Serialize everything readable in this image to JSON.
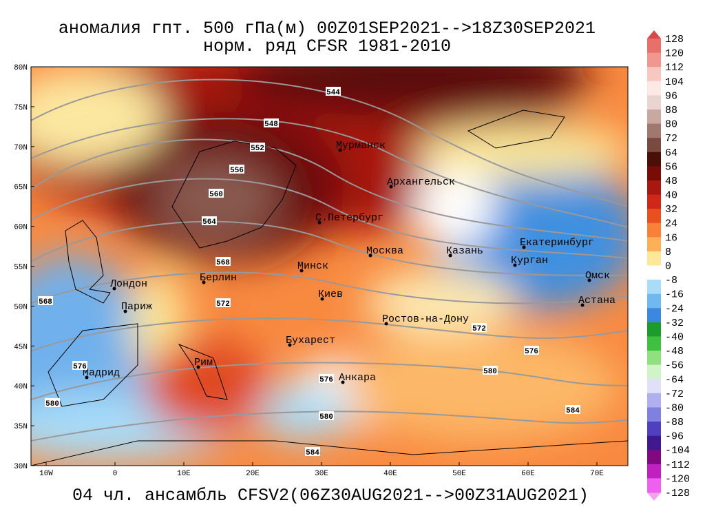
{
  "title": [
    "аномалия гпт. 500 гПа(м) 00Z01SEP2021-->18Z30SEP2021",
    "норм. ряд CFSR 1981-2010"
  ],
  "footer": "04 чл. ансамбль CFSV2(06Z30AUG2021-->00Z31AUG2021)",
  "lat_labels": [
    "80N",
    "75N",
    "70N",
    "65N",
    "60N",
    "55N",
    "50N",
    "45N",
    "40N",
    "35N",
    "30N"
  ],
  "lon_labels": [
    "10W",
    "0",
    "10E",
    "20E",
    "30E",
    "40E",
    "50E",
    "60E",
    "70E"
  ],
  "cities": [
    "Мурманск",
    "Архангельск",
    "С.Петербург",
    "Москва",
    "Казань",
    "Екатеринбург",
    "Курган",
    "Омск",
    "Астана",
    "Минск",
    "Лондон",
    "Берлин",
    "Киев",
    "Париж",
    "Ростов-на-Дону",
    "Бухарест",
    "Рим",
    "Мадрид",
    "Анкара"
  ],
  "contour_labels": [
    "544",
    "548",
    "552",
    "556",
    "560",
    "564",
    "568",
    "572",
    "568",
    "572",
    "576",
    "576",
    "576",
    "580",
    "580",
    "580",
    "584",
    "584"
  ],
  "colorbar_labels": [
    128,
    120,
    112,
    104,
    96,
    88,
    80,
    72,
    64,
    56,
    48,
    40,
    32,
    24,
    16,
    8,
    0,
    -8,
    -16,
    -24,
    -32,
    -40,
    -48,
    -56,
    -64,
    -72,
    -80,
    -88,
    -96,
    -104,
    -112,
    -120,
    -128
  ]
}
